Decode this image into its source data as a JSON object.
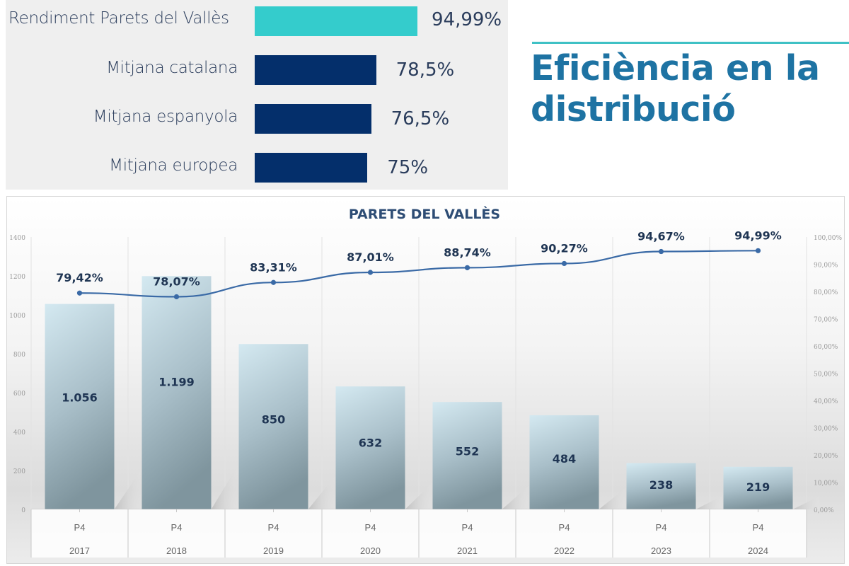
{
  "comparison": {
    "items": [
      {
        "label": "Rendiment Parets del Vallès",
        "value": 94.99,
        "value_label": "94,99%",
        "color": "#34cccc"
      },
      {
        "label": "Mitjana catalana",
        "value": 78.5,
        "value_label": "78,5%",
        "color": "#042f6b"
      },
      {
        "label": "Mitjana espanyola",
        "value": 76.5,
        "value_label": "76,5%",
        "color": "#042f6b"
      },
      {
        "label": "Mitjana europea",
        "value": 75,
        "value_label": "75%",
        "color": "#042f6b"
      }
    ]
  },
  "heading": {
    "line1": "Eficiència en la",
    "line2": "distribució",
    "accent": "#3fc1c5",
    "color": "#1e73a3"
  },
  "chart_data": {
    "type": "bar",
    "title": "PARETS DEL VALLÈS",
    "categories": [
      "P4 2017",
      "P4 2018",
      "P4 2019",
      "P4 2020",
      "P4 2021",
      "P4 2022",
      "P4 2023",
      "P4 2024"
    ],
    "category_top": [
      "P4",
      "P4",
      "P4",
      "P4",
      "P4",
      "P4",
      "P4",
      "P4"
    ],
    "category_bottom": [
      "2017",
      "2018",
      "2019",
      "2020",
      "2021",
      "2022",
      "2023",
      "2024"
    ],
    "series": [
      {
        "name": "Bars",
        "type": "bar",
        "axis": "left",
        "values": [
          1056,
          1199,
          850,
          632,
          552,
          484,
          238,
          219
        ],
        "labels": [
          "1.056",
          "1.199",
          "850",
          "632",
          "552",
          "484",
          "238",
          "219"
        ]
      },
      {
        "name": "Rendiment",
        "type": "line",
        "axis": "right",
        "values": [
          79.42,
          78.07,
          83.31,
          87.01,
          88.74,
          90.27,
          94.67,
          94.99
        ],
        "labels": [
          "79,42%",
          "78,07%",
          "83,31%",
          "87,01%",
          "88,74%",
          "90,27%",
          "94,67%",
          "94,99%"
        ]
      }
    ],
    "y_left": {
      "range": [
        0,
        1400
      ],
      "ticks": [
        "0",
        "200",
        "400",
        "600",
        "800",
        "1000",
        "1200",
        "1400"
      ],
      "tick_values": [
        0,
        200,
        400,
        600,
        800,
        1000,
        1200,
        1400
      ]
    },
    "y_right": {
      "range": [
        0,
        100
      ],
      "ticks": [
        "0,00%",
        "10,00%",
        "20,00%",
        "30,00%",
        "40,00%",
        "50,00%",
        "60,00%",
        "70,00%",
        "80,00%",
        "90,00%",
        "100,00%"
      ],
      "tick_values": [
        0,
        10,
        20,
        30,
        40,
        50,
        60,
        70,
        80,
        90,
        100
      ]
    },
    "grid": "vertical",
    "legend": "none",
    "line_color": "#3a6aa6",
    "label_color": "#1f3553"
  }
}
